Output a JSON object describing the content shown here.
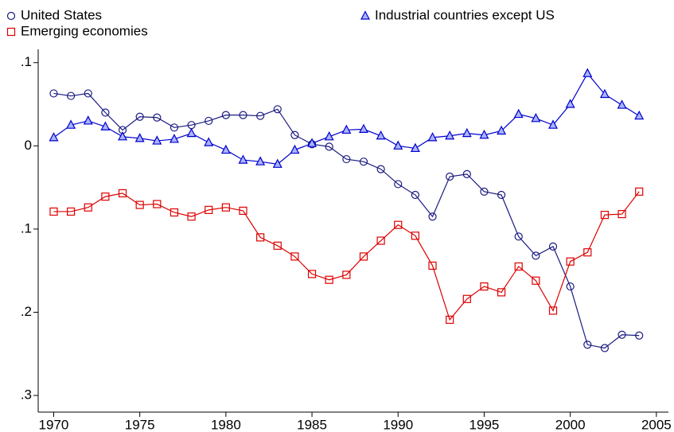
{
  "chart_data": {
    "type": "line",
    "legend": "top",
    "grid": false,
    "x": [
      1970,
      1971,
      1972,
      1973,
      1974,
      1975,
      1976,
      1977,
      1978,
      1979,
      1980,
      1981,
      1982,
      1983,
      1984,
      1985,
      1986,
      1987,
      1988,
      1989,
      1990,
      1991,
      1992,
      1993,
      1994,
      1995,
      1996,
      1997,
      1998,
      1999,
      2000,
      2001,
      2002,
      2003,
      2004
    ],
    "xlim": [
      1969.1,
      2005.7
    ],
    "xticks": [
      1970,
      1975,
      1980,
      1985,
      1990,
      1995,
      2000,
      2005
    ],
    "ylim": [
      -0.32,
      0.116
    ],
    "yticks": [
      {
        "value": 0.1,
        "label": ".1"
      },
      0,
      {
        "value": -0.1,
        "label": ".1"
      },
      {
        "value": -0.2,
        "label": ".2"
      },
      {
        "value": -0.3,
        "label": ".3"
      }
    ],
    "series": [
      {
        "name": "United States",
        "color": "#1a1a80",
        "marker": "circle",
        "values": [
          0.063,
          0.06,
          0.063,
          0.04,
          0.019,
          0.035,
          0.034,
          0.022,
          0.025,
          0.03,
          0.037,
          0.037,
          0.036,
          0.044,
          0.013,
          0.002,
          -0.001,
          -0.016,
          -0.019,
          -0.028,
          -0.046,
          -0.059,
          -0.085,
          -0.037,
          -0.034,
          -0.055,
          -0.059,
          -0.109,
          -0.132,
          -0.121,
          -0.169,
          -0.239,
          -0.243,
          -0.227,
          -0.228
        ]
      },
      {
        "name": "Industrial countries except US",
        "color": "#0000cc",
        "marker": "triangle",
        "values": [
          0.01,
          0.025,
          0.03,
          0.023,
          0.011,
          0.009,
          0.006,
          0.008,
          0.015,
          0.004,
          -0.005,
          -0.017,
          -0.019,
          -0.022,
          -0.005,
          0.003,
          0.011,
          0.019,
          0.02,
          0.012,
          0.0,
          -0.003,
          0.01,
          0.012,
          0.015,
          0.013,
          0.018,
          0.038,
          0.033,
          0.025,
          0.05,
          0.087,
          0.062,
          0.049,
          0.036
        ]
      },
      {
        "name": "Emerging economies",
        "color": "#dd0000",
        "marker": "square",
        "values": [
          -0.079,
          -0.079,
          -0.074,
          -0.061,
          -0.057,
          -0.071,
          -0.07,
          -0.08,
          -0.085,
          -0.077,
          -0.074,
          -0.078,
          -0.11,
          -0.12,
          -0.133,
          -0.154,
          -0.161,
          -0.155,
          -0.133,
          -0.114,
          -0.095,
          -0.108,
          -0.144,
          -0.209,
          -0.184,
          -0.169,
          -0.176,
          -0.145,
          -0.162,
          -0.198,
          -0.139,
          -0.128,
          -0.083,
          -0.082,
          -0.055
        ]
      }
    ]
  }
}
